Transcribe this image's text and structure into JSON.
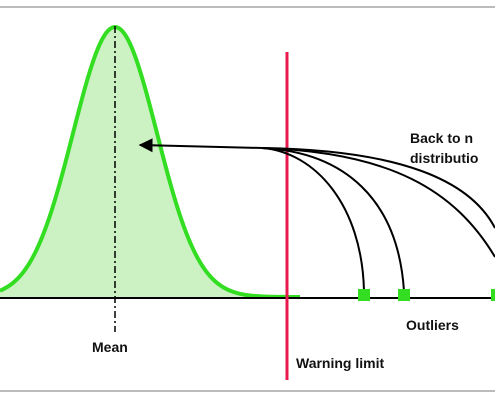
{
  "diagram": {
    "labels": {
      "back_line1": "Back to n",
      "back_line2": "distributio",
      "mean": "Mean",
      "outliers": "Outliers",
      "warning": "Warning limit"
    },
    "colors": {
      "curve": "#33dd22",
      "curve_fill": "#ccf2c4",
      "warning_line": "#e8194d",
      "axis": "#000000",
      "arrows": "#000000",
      "outlier_markers": "#33dd22",
      "frame": "#bbbbbb"
    }
  }
}
